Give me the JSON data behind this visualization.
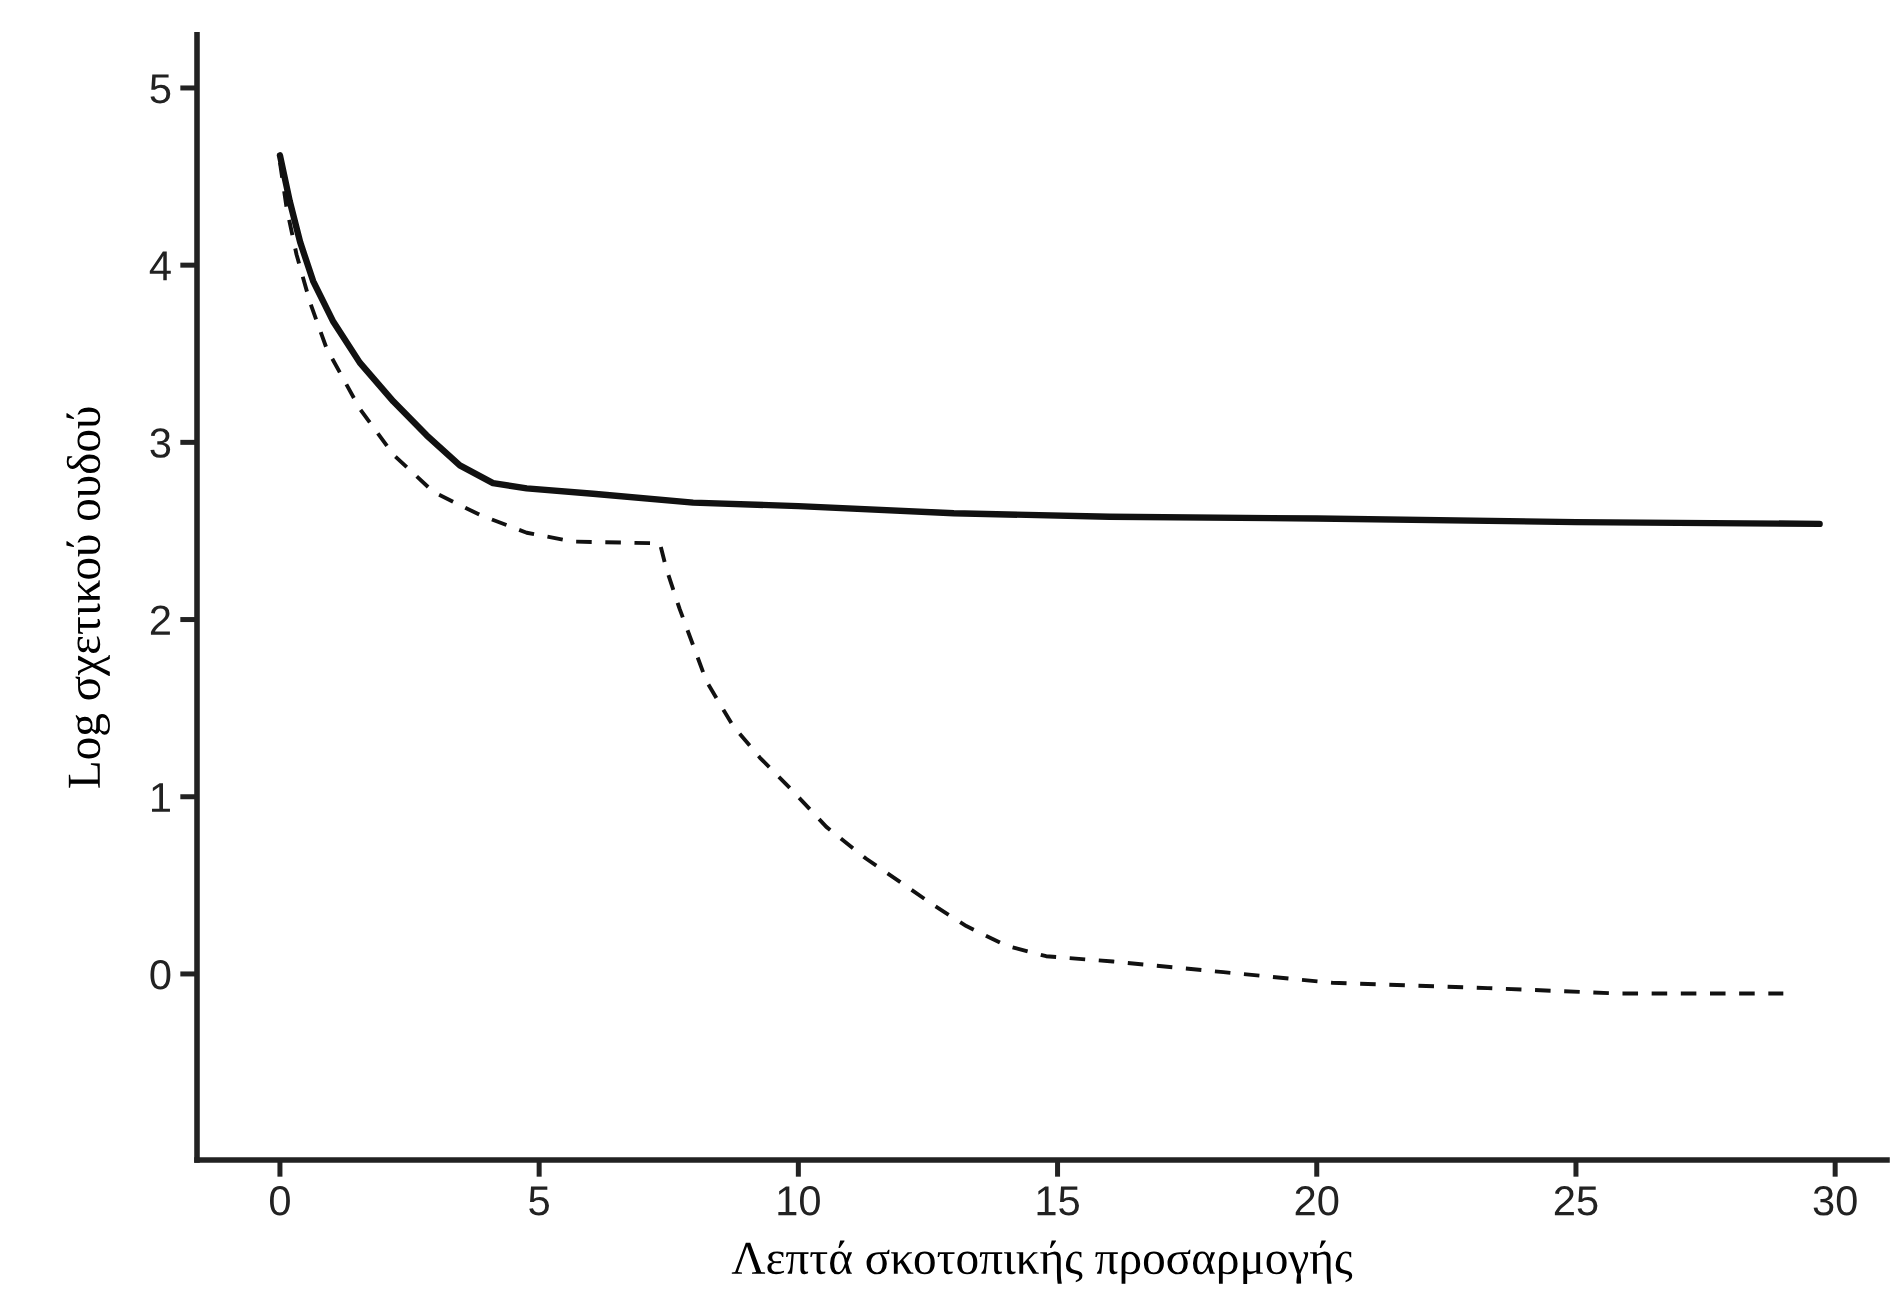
{
  "chart_data": {
    "type": "line",
    "xlabel": "Λεπτά σκοτοπικής προσαρμογής",
    "ylabel": "Log σχετικού ουδού",
    "xlim": [
      -1.6,
      31
    ],
    "ylim": [
      -1.05,
      5.3
    ],
    "xticks": [
      0,
      5,
      10,
      15,
      20,
      25,
      30
    ],
    "yticks": [
      0,
      1,
      2,
      3,
      4,
      5
    ],
    "series": [
      {
        "color": "#111111",
        "line_style": "solid",
        "x": [
          0,
          0.19,
          0.39,
          0.64,
          1.03,
          1.54,
          2.19,
          2.83,
          3.47,
          4.11,
          4.76,
          6.04,
          7.97,
          10,
          13,
          16,
          20,
          25,
          29.7
        ],
        "values": [
          4.62,
          4.36,
          4.13,
          3.91,
          3.68,
          3.45,
          3.23,
          3.04,
          2.87,
          2.77,
          2.74,
          2.71,
          2.66,
          2.64,
          2.6,
          2.58,
          2.57,
          2.55,
          2.54
        ]
      },
      {
        "color": "#111111",
        "line_style": "dashed",
        "x": [
          0,
          0.13,
          0.32,
          0.58,
          0.9,
          1.54,
          2.19,
          2.96,
          3.86,
          4.76,
          5.66,
          7.33,
          7.45,
          7.71,
          8.23,
          8.74,
          9.26,
          9.9,
          10.54,
          11.31,
          11.96,
          12.6,
          13.24,
          14.01,
          14.78,
          16.07,
          18.2,
          20.3,
          23.3,
          25.8,
          29
        ],
        "values": [
          4.58,
          4.32,
          4.06,
          3.79,
          3.53,
          3.19,
          2.93,
          2.72,
          2.59,
          2.49,
          2.44,
          2.43,
          2.29,
          2.06,
          1.65,
          1.4,
          1.22,
          1.03,
          0.83,
          0.65,
          0.52,
          0.39,
          0.27,
          0.16,
          0.1,
          0.07,
          0.01,
          -0.05,
          -0.08,
          -0.11,
          -0.11
        ]
      }
    ]
  }
}
